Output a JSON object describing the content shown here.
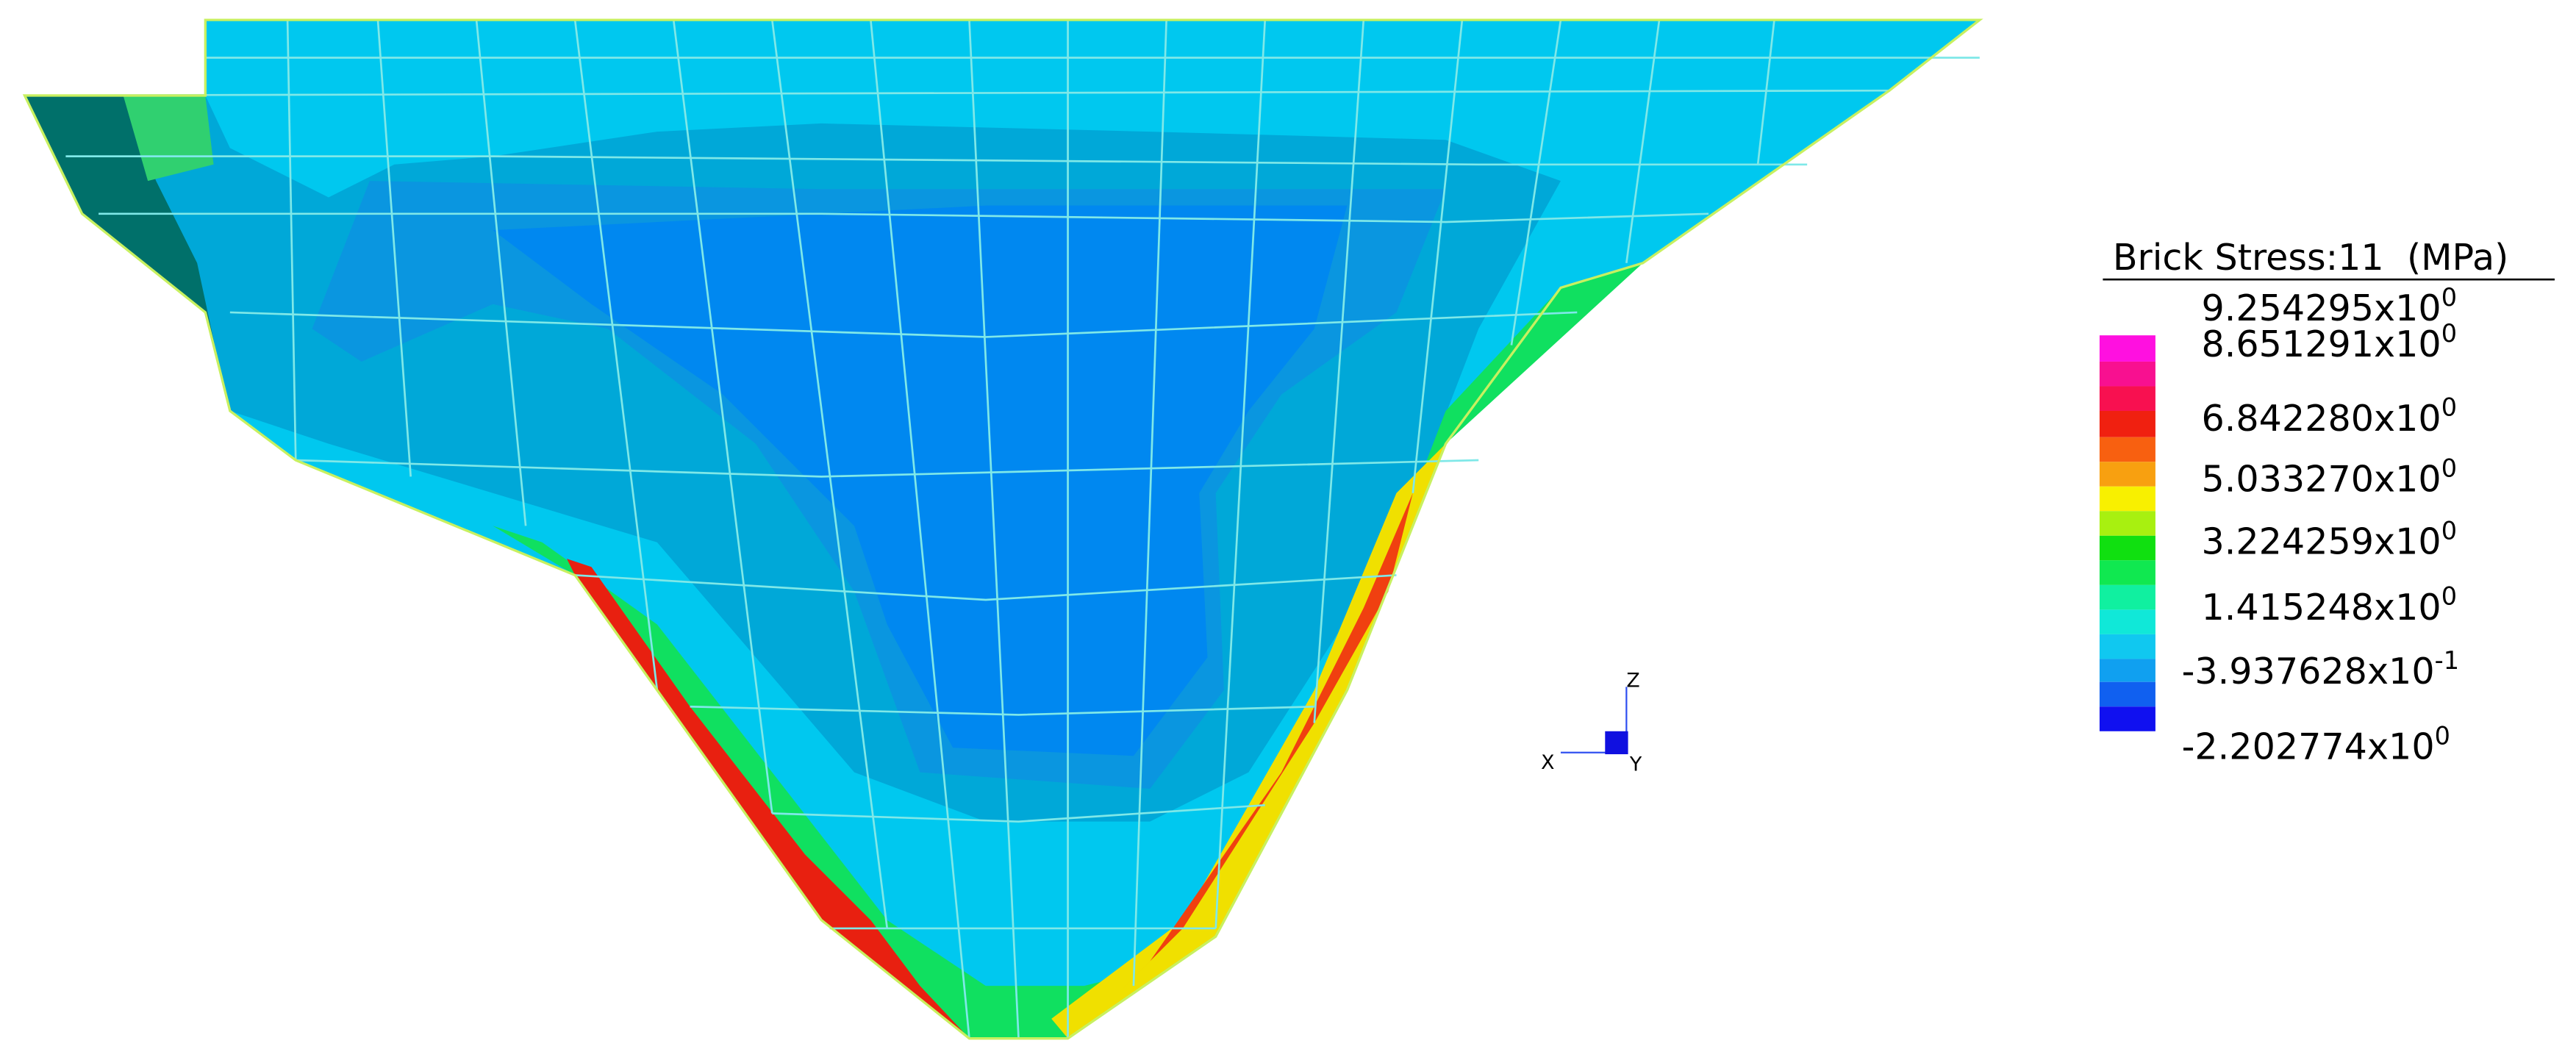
{
  "legend": {
    "title": "Brick Stress:11  (MPa)",
    "labels": [
      {
        "base": "9.254295x10",
        "exp": "0"
      },
      {
        "base": "8.651291x10",
        "exp": "0"
      },
      {
        "base": "6.842280x10",
        "exp": "0"
      },
      {
        "base": "5.033270x10",
        "exp": "0"
      },
      {
        "base": "3.224259x10",
        "exp": "0"
      },
      {
        "base": "1.415248x10",
        "exp": "0"
      },
      {
        "base": "-3.937628x10",
        "exp": "-1"
      },
      {
        "base": "-2.202774x10",
        "exp": "0"
      }
    ]
  },
  "triad": {
    "z": "Z",
    "x": "X",
    "y": "Y"
  }
}
